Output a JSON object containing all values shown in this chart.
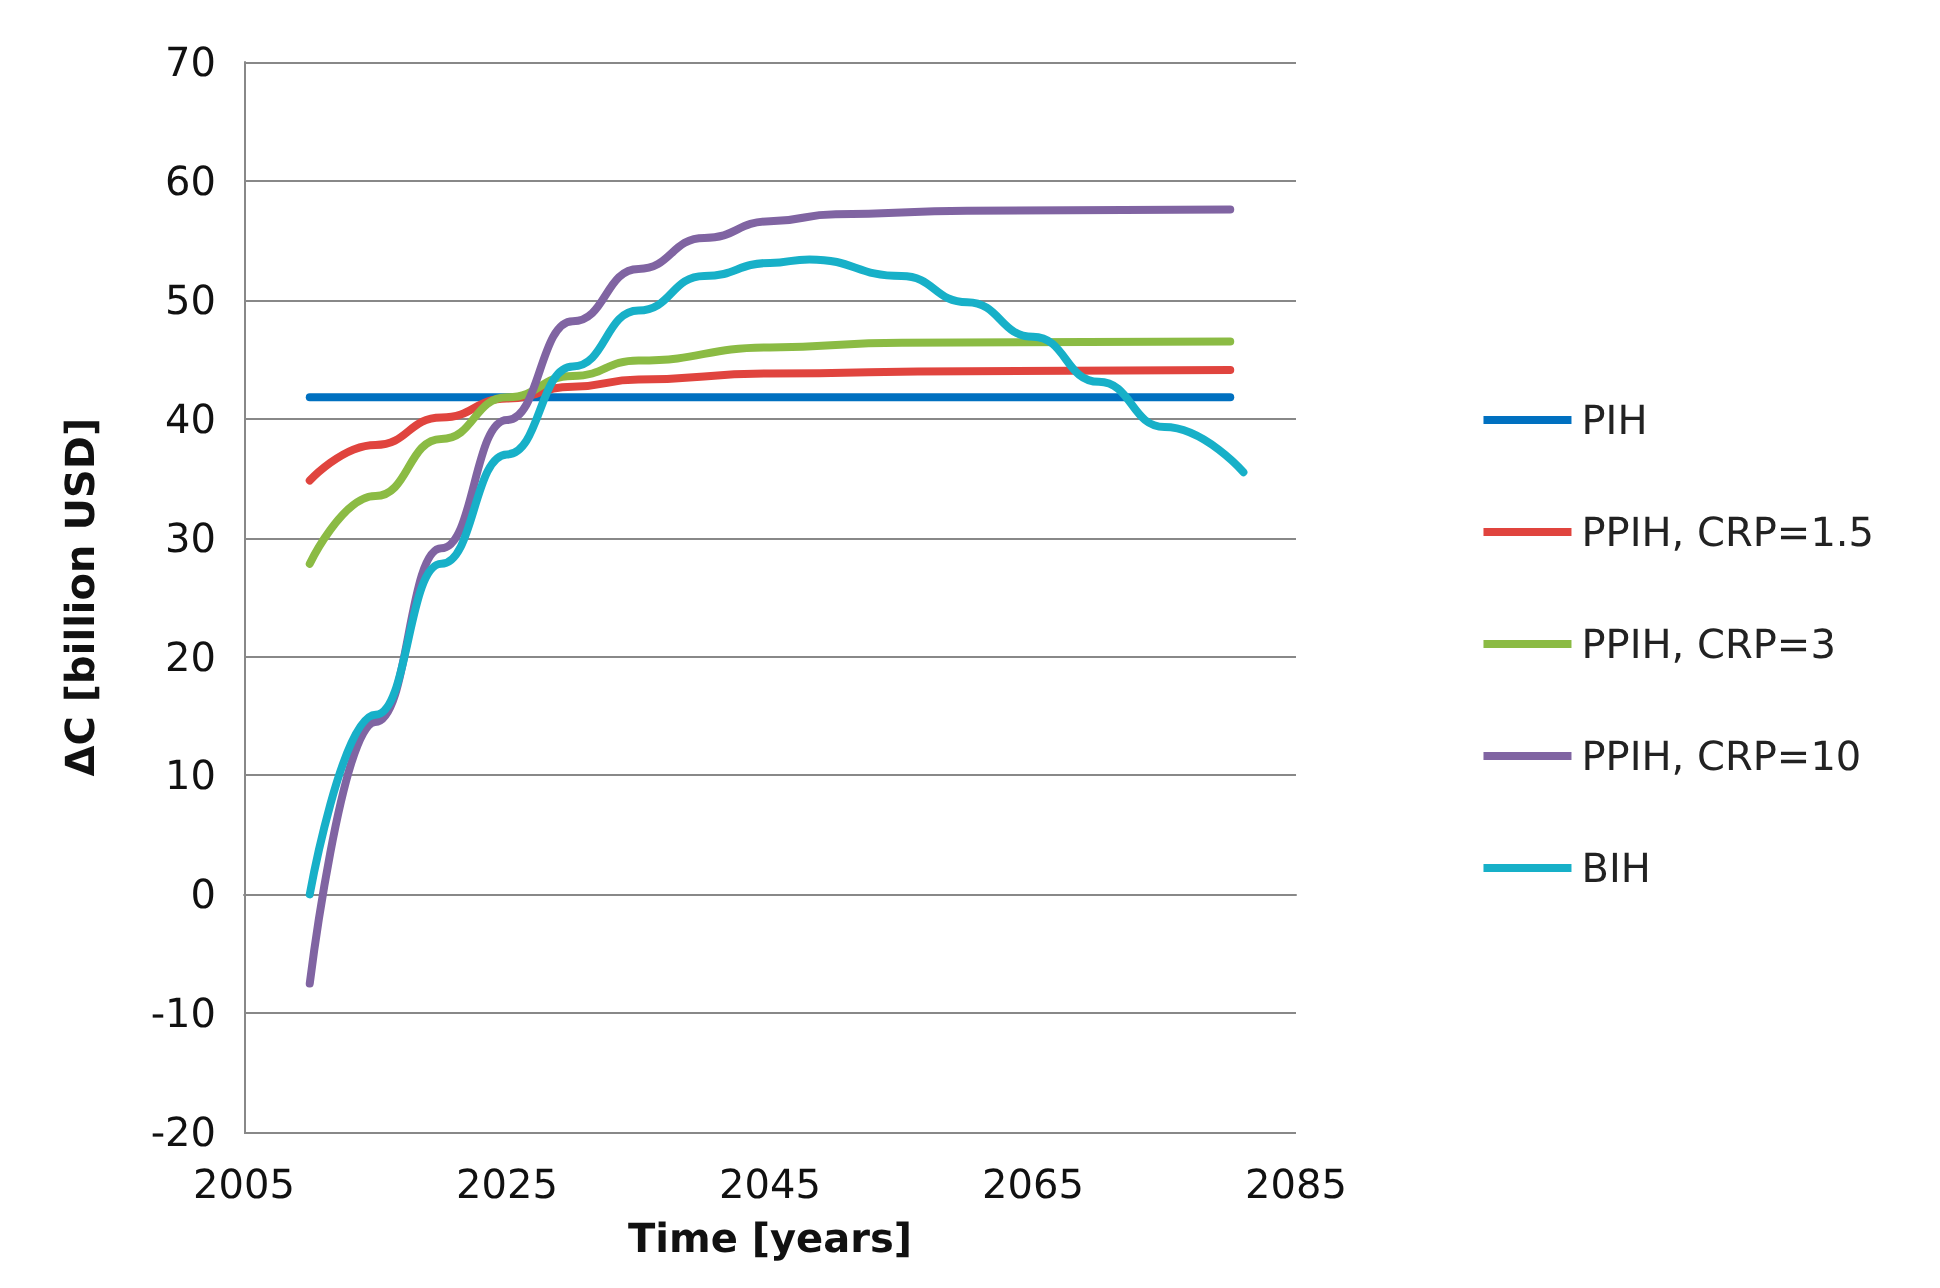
{
  "chart_data": {
    "type": "line",
    "xlabel": "Time [years]",
    "ylabel": "ΔC [billion USD]",
    "xlim": [
      2005,
      2085
    ],
    "xticks": [
      2005,
      2025,
      2045,
      2065,
      2085
    ],
    "ylim": [
      -20,
      70
    ],
    "yticks": [
      -20,
      -10,
      0,
      10,
      20,
      30,
      40,
      50,
      60,
      70
    ],
    "grid": "y",
    "legend": "right",
    "marker": "none",
    "line_style": "solid",
    "series": [
      {
        "name": "PIH",
        "color": "#0070c0",
        "x": [
          2010,
          2080
        ],
        "values": [
          41.8,
          41.8
        ]
      },
      {
        "name": "PPIH, CRP=1.5",
        "color": "#e0443e",
        "x": [
          2010,
          2015,
          2020,
          2025,
          2030,
          2035,
          2045,
          2060,
          2080
        ],
        "values": [
          34.8,
          37.8,
          40.1,
          41.7,
          42.7,
          43.3,
          43.8,
          44.0,
          44.1
        ]
      },
      {
        "name": "PPIH, CRP=3",
        "color": "#8bbb44",
        "x": [
          2010,
          2015,
          2020,
          2025,
          2030,
          2035,
          2045,
          2055,
          2080
        ],
        "values": [
          27.8,
          33.5,
          38.3,
          41.8,
          43.6,
          44.9,
          46.0,
          46.4,
          46.5
        ]
      },
      {
        "name": "PPIH, CRP=10",
        "color": "#8064a2",
        "x": [
          2010,
          2015,
          2020,
          2025,
          2030,
          2035,
          2040,
          2045,
          2050,
          2060,
          2080
        ],
        "values": [
          -7.5,
          14.5,
          29.1,
          39.9,
          48.2,
          52.6,
          55.2,
          56.6,
          57.2,
          57.5,
          57.6
        ]
      },
      {
        "name": "BIH",
        "color": "#17b0c8",
        "x": [
          2010,
          2015,
          2020,
          2025,
          2030,
          2035,
          2040,
          2045,
          2048,
          2055,
          2060,
          2065,
          2070,
          2075,
          2081
        ],
        "values": [
          0,
          15.1,
          27.8,
          37.0,
          44.4,
          49.1,
          52.0,
          53.1,
          53.4,
          52.0,
          49.8,
          46.9,
          43.1,
          39.3,
          35.5
        ]
      }
    ]
  }
}
